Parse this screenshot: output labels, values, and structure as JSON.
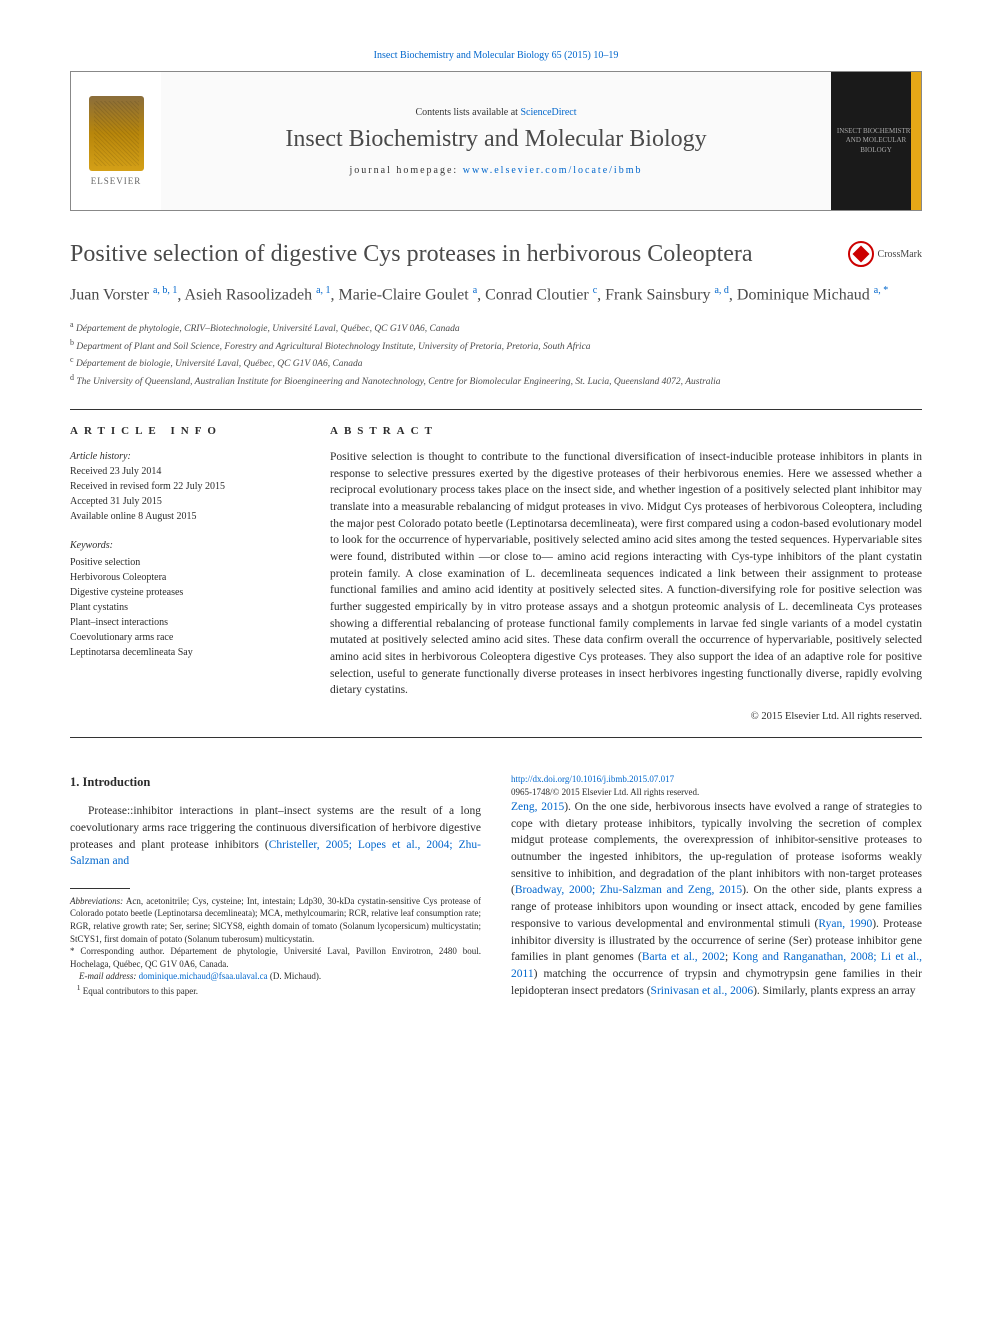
{
  "top_citation": "Insect Biochemistry and Molecular Biology 65 (2015) 10–19",
  "header": {
    "contents_prefix": "Contents lists available at ",
    "contents_link": "ScienceDirect",
    "journal_name": "Insect Biochemistry and Molecular Biology",
    "homepage_prefix": "journal homepage: ",
    "homepage_link": "www.elsevier.com/locate/ibmb",
    "publisher": "ELSEVIER",
    "cover_text": "INSECT BIOCHEMISTRY AND MOLECULAR BIOLOGY"
  },
  "crossmark": "CrossMark",
  "title": "Positive selection of digestive Cys proteases in herbivorous Coleoptera",
  "authors_html": "Juan Vorster <sup>a, b, 1</sup>, Asieh Rasoolizadeh <sup>a, 1</sup>, Marie-Claire Goulet <sup>a</sup>, Conrad Cloutier <sup>c</sup>, Frank Sainsbury <sup>a, d</sup>, Dominique Michaud <sup>a, *</sup>",
  "affiliations": [
    {
      "sup": "a",
      "text": "Département de phytologie, CRIV–Biotechnologie, Université Laval, Québec, QC G1V 0A6, Canada"
    },
    {
      "sup": "b",
      "text": "Department of Plant and Soil Science, Forestry and Agricultural Biotechnology Institute, University of Pretoria, Pretoria, South Africa"
    },
    {
      "sup": "c",
      "text": "Département de biologie, Université Laval, Québec, QC G1V 0A6, Canada"
    },
    {
      "sup": "d",
      "text": "The University of Queensland, Australian Institute for Bioengineering and Nanotechnology, Centre for Biomolecular Engineering, St. Lucia, Queensland 4072, Australia"
    }
  ],
  "article_info": {
    "header": "ARTICLE INFO",
    "history_label": "Article history:",
    "received": "Received 23 July 2014",
    "revised": "Received in revised form 22 July 2015",
    "accepted": "Accepted 31 July 2015",
    "online": "Available online 8 August 2015",
    "keywords_label": "Keywords:",
    "keywords": [
      "Positive selection",
      "Herbivorous Coleoptera",
      "Digestive cysteine proteases",
      "Plant cystatins",
      "Plant–insect interactions",
      "Coevolutionary arms race",
      "Leptinotarsa decemlineata Say"
    ]
  },
  "abstract": {
    "header": "ABSTRACT",
    "text": "Positive selection is thought to contribute to the functional diversification of insect-inducible protease inhibitors in plants in response to selective pressures exerted by the digestive proteases of their herbivorous enemies. Here we assessed whether a reciprocal evolutionary process takes place on the insect side, and whether ingestion of a positively selected plant inhibitor may translate into a measurable rebalancing of midgut proteases in vivo. Midgut Cys proteases of herbivorous Coleoptera, including the major pest Colorado potato beetle (Leptinotarsa decemlineata), were first compared using a codon-based evolutionary model to look for the occurrence of hypervariable, positively selected amino acid sites among the tested sequences. Hypervariable sites were found, distributed within —or close to— amino acid regions interacting with Cys-type inhibitors of the plant cystatin protein family. A close examination of L. decemlineata sequences indicated a link between their assignment to protease functional families and amino acid identity at positively selected sites. A function-diversifying role for positive selection was further suggested empirically by in vitro protease assays and a shotgun proteomic analysis of L. decemlineata Cys proteases showing a differential rebalancing of protease functional family complements in larvae fed single variants of a model cystatin mutated at positively selected amino acid sites. These data confirm overall the occurrence of hypervariable, positively selected amino acid sites in herbivorous Coleoptera digestive Cys proteases. They also support the idea of an adaptive role for positive selection, useful to generate functionally diverse proteases in insect herbivores ingesting functionally diverse, rapidly evolving dietary cystatins.",
    "copyright": "© 2015 Elsevier Ltd. All rights reserved."
  },
  "introduction": {
    "header": "1.  Introduction",
    "para1_pre": "Protease::inhibitor interactions in plant–insect systems are the result of a long coevolutionary arms race triggering the continuous diversification of herbivore digestive proteases and plant protease inhibitors (",
    "para1_link": "Christeller, 2005; Lopes et al., 2004; Zhu-Salzman and",
    "col2_link1": "Zeng, 2015",
    "col2_text1": "). On the one side, herbivorous insects have evolved a range of strategies to cope with dietary protease inhibitors, typically involving the secretion of complex midgut protease complements, the overexpression of inhibitor-sensitive proteases to outnumber the ingested inhibitors, the up-regulation of protease isoforms weakly sensitive to inhibition, and degradation of the plant inhibitors with non-target proteases (",
    "col2_link2": "Broadway, 2000; Zhu-Salzman and Zeng, 2015",
    "col2_text2": "). On the other side, plants express a range of protease inhibitors upon wounding or insect attack, encoded by gene families responsive to various developmental and environmental stimuli (",
    "col2_link3": "Ryan, 1990",
    "col2_text3": "). Protease inhibitor diversity is illustrated by the occurrence of serine (Ser) protease inhibitor gene families in plant genomes (",
    "col2_link4": "Barta et al., 2002",
    "col2_text4": "; ",
    "col2_link5": "Kong and Ranganathan, 2008; Li et al., 2011",
    "col2_text5": ") matching the occurrence of trypsin and chymotrypsin gene families in their lepidopteran insect predators (",
    "col2_link6": "Srinivasan et al., 2006",
    "col2_text6": "). Similarly, plants express an array"
  },
  "footnotes": {
    "abbrev_label": "Abbreviations:",
    "abbrev_text": " Acn, acetonitrile; Cys, cysteine; Int, intestain; Ldp30, 30-kDa cystatin-sensitive Cys protease of Colorado potato beetle (Leptinotarsa decemlineata); MCA, methylcoumarin; RCR, relative leaf consumption rate; RGR, relative growth rate; Ser, serine; SlCYS8, eighth domain of tomato (Solanum lycopersicum) multicystatin; StCYS1, first domain of potato (Solanum tuberosum) multicystatin.",
    "corr_text": "* Corresponding author. Département de phytologie, Université Laval, Pavillon Envirotron, 2480 boul. Hochelaga, Québec, QC G1V 0A6, Canada.",
    "email_label": "E-mail address:",
    "email_link": "dominique.michaud@fsaa.ulaval.ca",
    "email_suffix": " (D. Michaud).",
    "equal": "Equal contributors to this paper."
  },
  "footer": {
    "doi": "http://dx.doi.org/10.1016/j.ibmb.2015.07.017",
    "issn": "0965-1748/© 2015 Elsevier Ltd. All rights reserved."
  },
  "colors": {
    "link": "#0066cc",
    "text": "#2b2b2b",
    "heading": "#4a4a4a",
    "crossmark": "#c00",
    "elsevier_orange": "#e6a817"
  }
}
